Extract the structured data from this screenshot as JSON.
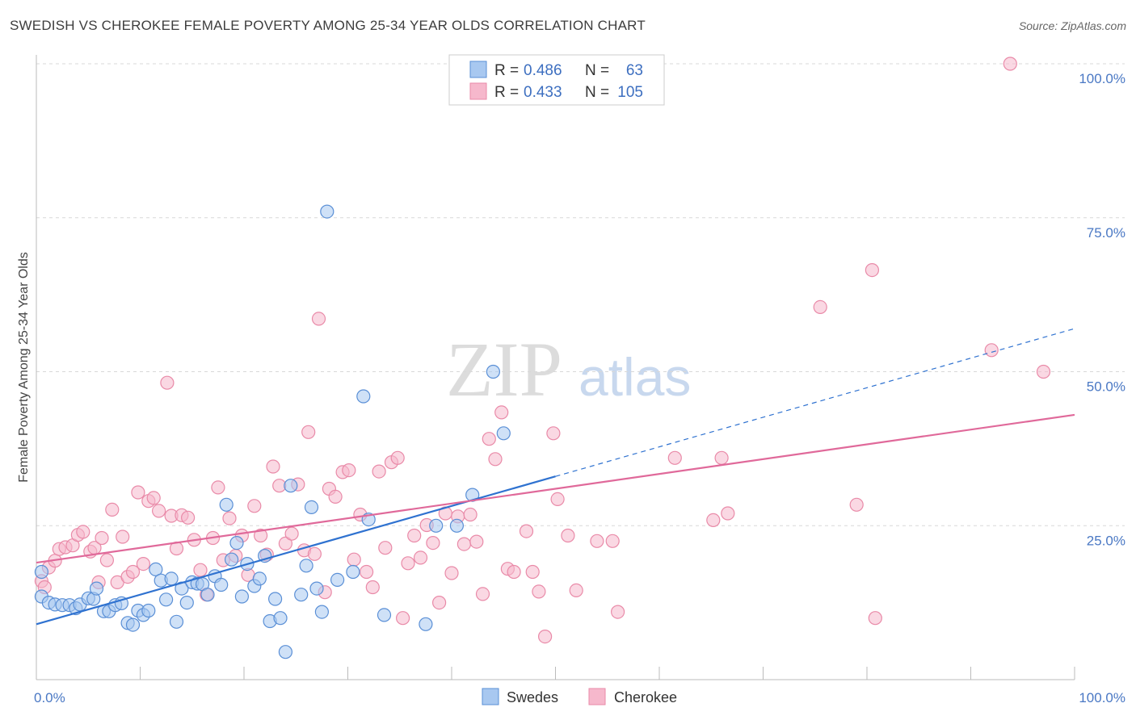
{
  "header": {
    "title": "SWEDISH VS CHEROKEE FEMALE POVERTY AMONG 25-34 YEAR OLDS CORRELATION CHART",
    "source": "Source: ZipAtlas.com"
  },
  "watermark": {
    "zip": "ZIP",
    "atlas": "atlas"
  },
  "legend": {
    "rows": [
      {
        "r_label": "R = ",
        "r_value": "0.486",
        "n_label": "N = ",
        "n_value": "63",
        "color": "#a8c8f0"
      },
      {
        "r_label": "R = ",
        "r_value": "0.433",
        "n_label": "N = ",
        "n_value": "105",
        "color": "#f6b8cc"
      }
    ]
  },
  "bottom_legend": {
    "items": [
      "Swedes",
      "Cherokee"
    ]
  },
  "colors": {
    "swedes_fill": "#a8c8f0",
    "swedes_stroke": "#5a8fd6",
    "swedes_line": "#2f72d0",
    "cherokee_fill": "#f6b8cc",
    "cherokee_stroke": "#e98aa8",
    "cherokee_line": "#e0699a",
    "grid": "#d8d8d8",
    "tick_text": "#4a78c4"
  },
  "chart_data": {
    "type": "scatter",
    "title": "SWEDISH VS CHEROKEE FEMALE POVERTY AMONG 25-34 YEAR OLDS CORRELATION CHART",
    "xlabel": "",
    "ylabel": "Female Poverty Among 25-34 Year Olds",
    "xlim": [
      0,
      100
    ],
    "ylim": [
      0,
      100
    ],
    "x_tick_labels": [
      "0.0%",
      "100.0%"
    ],
    "y_tick_labels": [
      "25.0%",
      "50.0%",
      "75.0%",
      "100.0%"
    ],
    "y_tick_values": [
      25,
      50,
      75,
      100
    ],
    "grid": "horizontal dashed",
    "legend_position": "top-center",
    "series": [
      {
        "name": "Swedes",
        "r": 0.486,
        "n": 63,
        "trend": {
          "x0": 0,
          "y0": 9,
          "x1": 50,
          "y1": 33,
          "dashed_to_x": 100,
          "dashed_to_y": 57
        },
        "points": [
          [
            0.5,
            17.5
          ],
          [
            0.5,
            13.5
          ],
          [
            1.2,
            12.5
          ],
          [
            1.8,
            12.2
          ],
          [
            2.5,
            12.1
          ],
          [
            3.2,
            12.1
          ],
          [
            3.8,
            11.6
          ],
          [
            4.2,
            12.2
          ],
          [
            5.0,
            13.2
          ],
          [
            5.5,
            13.1
          ],
          [
            5.8,
            14.8
          ],
          [
            6.5,
            11.1
          ],
          [
            7.0,
            11.1
          ],
          [
            7.6,
            12.1
          ],
          [
            8.2,
            12.4
          ],
          [
            8.8,
            9.2
          ],
          [
            9.3,
            8.9
          ],
          [
            9.8,
            11.2
          ],
          [
            10.3,
            10.5
          ],
          [
            10.8,
            11.2
          ],
          [
            11.5,
            17.9
          ],
          [
            12.0,
            16.1
          ],
          [
            12.5,
            13.0
          ],
          [
            13.0,
            16.4
          ],
          [
            13.5,
            9.4
          ],
          [
            14.0,
            14.8
          ],
          [
            14.5,
            12.5
          ],
          [
            15.0,
            15.8
          ],
          [
            15.5,
            15.6
          ],
          [
            16.0,
            15.5
          ],
          [
            16.5,
            13.8
          ],
          [
            17.2,
            16.8
          ],
          [
            17.8,
            15.4
          ],
          [
            18.3,
            28.4
          ],
          [
            18.8,
            19.5
          ],
          [
            19.3,
            22.2
          ],
          [
            19.8,
            13.5
          ],
          [
            20.3,
            18.8
          ],
          [
            21.0,
            15.2
          ],
          [
            21.5,
            16.4
          ],
          [
            22.0,
            20.1
          ],
          [
            22.5,
            9.5
          ],
          [
            23.0,
            13.1
          ],
          [
            23.5,
            10.0
          ],
          [
            24.0,
            4.5
          ],
          [
            24.5,
            31.5
          ],
          [
            25.5,
            13.8
          ],
          [
            26.0,
            18.5
          ],
          [
            26.5,
            28.0
          ],
          [
            27.0,
            14.8
          ],
          [
            27.5,
            11.0
          ],
          [
            28.0,
            76.0
          ],
          [
            29.0,
            16.2
          ],
          [
            30.5,
            17.5
          ],
          [
            31.5,
            46.0
          ],
          [
            38.5,
            25.0
          ],
          [
            37.5,
            9.0
          ],
          [
            40.5,
            25.0
          ],
          [
            42.0,
            30.0
          ],
          [
            44.0,
            50.0
          ],
          [
            45.0,
            40.0
          ],
          [
            32.0,
            26.0
          ],
          [
            33.5,
            10.5
          ]
        ]
      },
      {
        "name": "Cherokee",
        "r": 0.433,
        "n": 105,
        "trend": {
          "x0": 0,
          "y0": 19,
          "x1": 100,
          "y1": 43
        },
        "points": [
          [
            0.5,
            16.0
          ],
          [
            0.8,
            15.0
          ],
          [
            1.2,
            18.2
          ],
          [
            1.8,
            19.3
          ],
          [
            2.2,
            21.2
          ],
          [
            2.8,
            21.5
          ],
          [
            3.5,
            21.8
          ],
          [
            4.0,
            23.5
          ],
          [
            4.5,
            24.0
          ],
          [
            5.2,
            20.8
          ],
          [
            5.6,
            21.4
          ],
          [
            6.0,
            15.8
          ],
          [
            6.3,
            23.0
          ],
          [
            6.8,
            19.4
          ],
          [
            7.3,
            27.6
          ],
          [
            7.8,
            15.8
          ],
          [
            8.3,
            23.2
          ],
          [
            8.8,
            16.7
          ],
          [
            9.3,
            17.5
          ],
          [
            9.8,
            30.4
          ],
          [
            10.3,
            18.8
          ],
          [
            10.8,
            29.0
          ],
          [
            11.3,
            29.5
          ],
          [
            11.8,
            27.4
          ],
          [
            12.6,
            48.2
          ],
          [
            13.0,
            26.6
          ],
          [
            13.5,
            21.3
          ],
          [
            14.0,
            26.7
          ],
          [
            14.6,
            26.3
          ],
          [
            15.2,
            22.7
          ],
          [
            15.8,
            17.8
          ],
          [
            16.4,
            13.8
          ],
          [
            17.0,
            23.0
          ],
          [
            17.5,
            31.2
          ],
          [
            18.0,
            19.4
          ],
          [
            18.6,
            26.2
          ],
          [
            19.2,
            20.1
          ],
          [
            19.8,
            23.4
          ],
          [
            20.4,
            17.0
          ],
          [
            21.0,
            28.2
          ],
          [
            21.6,
            23.4
          ],
          [
            22.2,
            20.3
          ],
          [
            22.8,
            34.6
          ],
          [
            23.4,
            31.5
          ],
          [
            24.0,
            22.1
          ],
          [
            24.6,
            23.7
          ],
          [
            25.2,
            31.7
          ],
          [
            25.8,
            21.0
          ],
          [
            26.2,
            40.2
          ],
          [
            26.8,
            20.4
          ],
          [
            27.2,
            58.6
          ],
          [
            27.8,
            14.2
          ],
          [
            28.2,
            31.0
          ],
          [
            28.8,
            29.7
          ],
          [
            29.5,
            33.7
          ],
          [
            30.1,
            34.0
          ],
          [
            30.6,
            19.5
          ],
          [
            31.2,
            26.8
          ],
          [
            31.8,
            17.5
          ],
          [
            32.4,
            15.0
          ],
          [
            33.0,
            33.8
          ],
          [
            33.6,
            21.4
          ],
          [
            34.2,
            35.3
          ],
          [
            34.8,
            36.0
          ],
          [
            35.3,
            10.0
          ],
          [
            35.8,
            18.9
          ],
          [
            36.4,
            23.4
          ],
          [
            37.0,
            19.8
          ],
          [
            37.6,
            25.1
          ],
          [
            38.2,
            22.2
          ],
          [
            38.8,
            12.5
          ],
          [
            39.4,
            27.0
          ],
          [
            40.0,
            17.3
          ],
          [
            40.6,
            26.5
          ],
          [
            41.2,
            22.0
          ],
          [
            41.8,
            26.8
          ],
          [
            42.4,
            22.4
          ],
          [
            43.0,
            13.9
          ],
          [
            43.6,
            39.1
          ],
          [
            44.2,
            35.8
          ],
          [
            44.8,
            43.4
          ],
          [
            45.4,
            18.0
          ],
          [
            46.0,
            17.5
          ],
          [
            47.2,
            24.1
          ],
          [
            47.8,
            17.5
          ],
          [
            48.4,
            14.3
          ],
          [
            49.0,
            7.0
          ],
          [
            49.8,
            40.0
          ],
          [
            50.2,
            29.3
          ],
          [
            52.0,
            14.5
          ],
          [
            51.2,
            23.4
          ],
          [
            55.5,
            22.5
          ],
          [
            56.0,
            11.0
          ],
          [
            61.5,
            36.0
          ],
          [
            65.2,
            25.9
          ],
          [
            66.0,
            36.0
          ],
          [
            66.6,
            27.0
          ],
          [
            75.5,
            60.5
          ],
          [
            79.0,
            28.4
          ],
          [
            80.5,
            66.5
          ],
          [
            80.8,
            10.0
          ],
          [
            92.0,
            53.5
          ],
          [
            93.8,
            100.0
          ],
          [
            97.0,
            50.0
          ],
          [
            54.0,
            22.5
          ]
        ]
      }
    ]
  }
}
